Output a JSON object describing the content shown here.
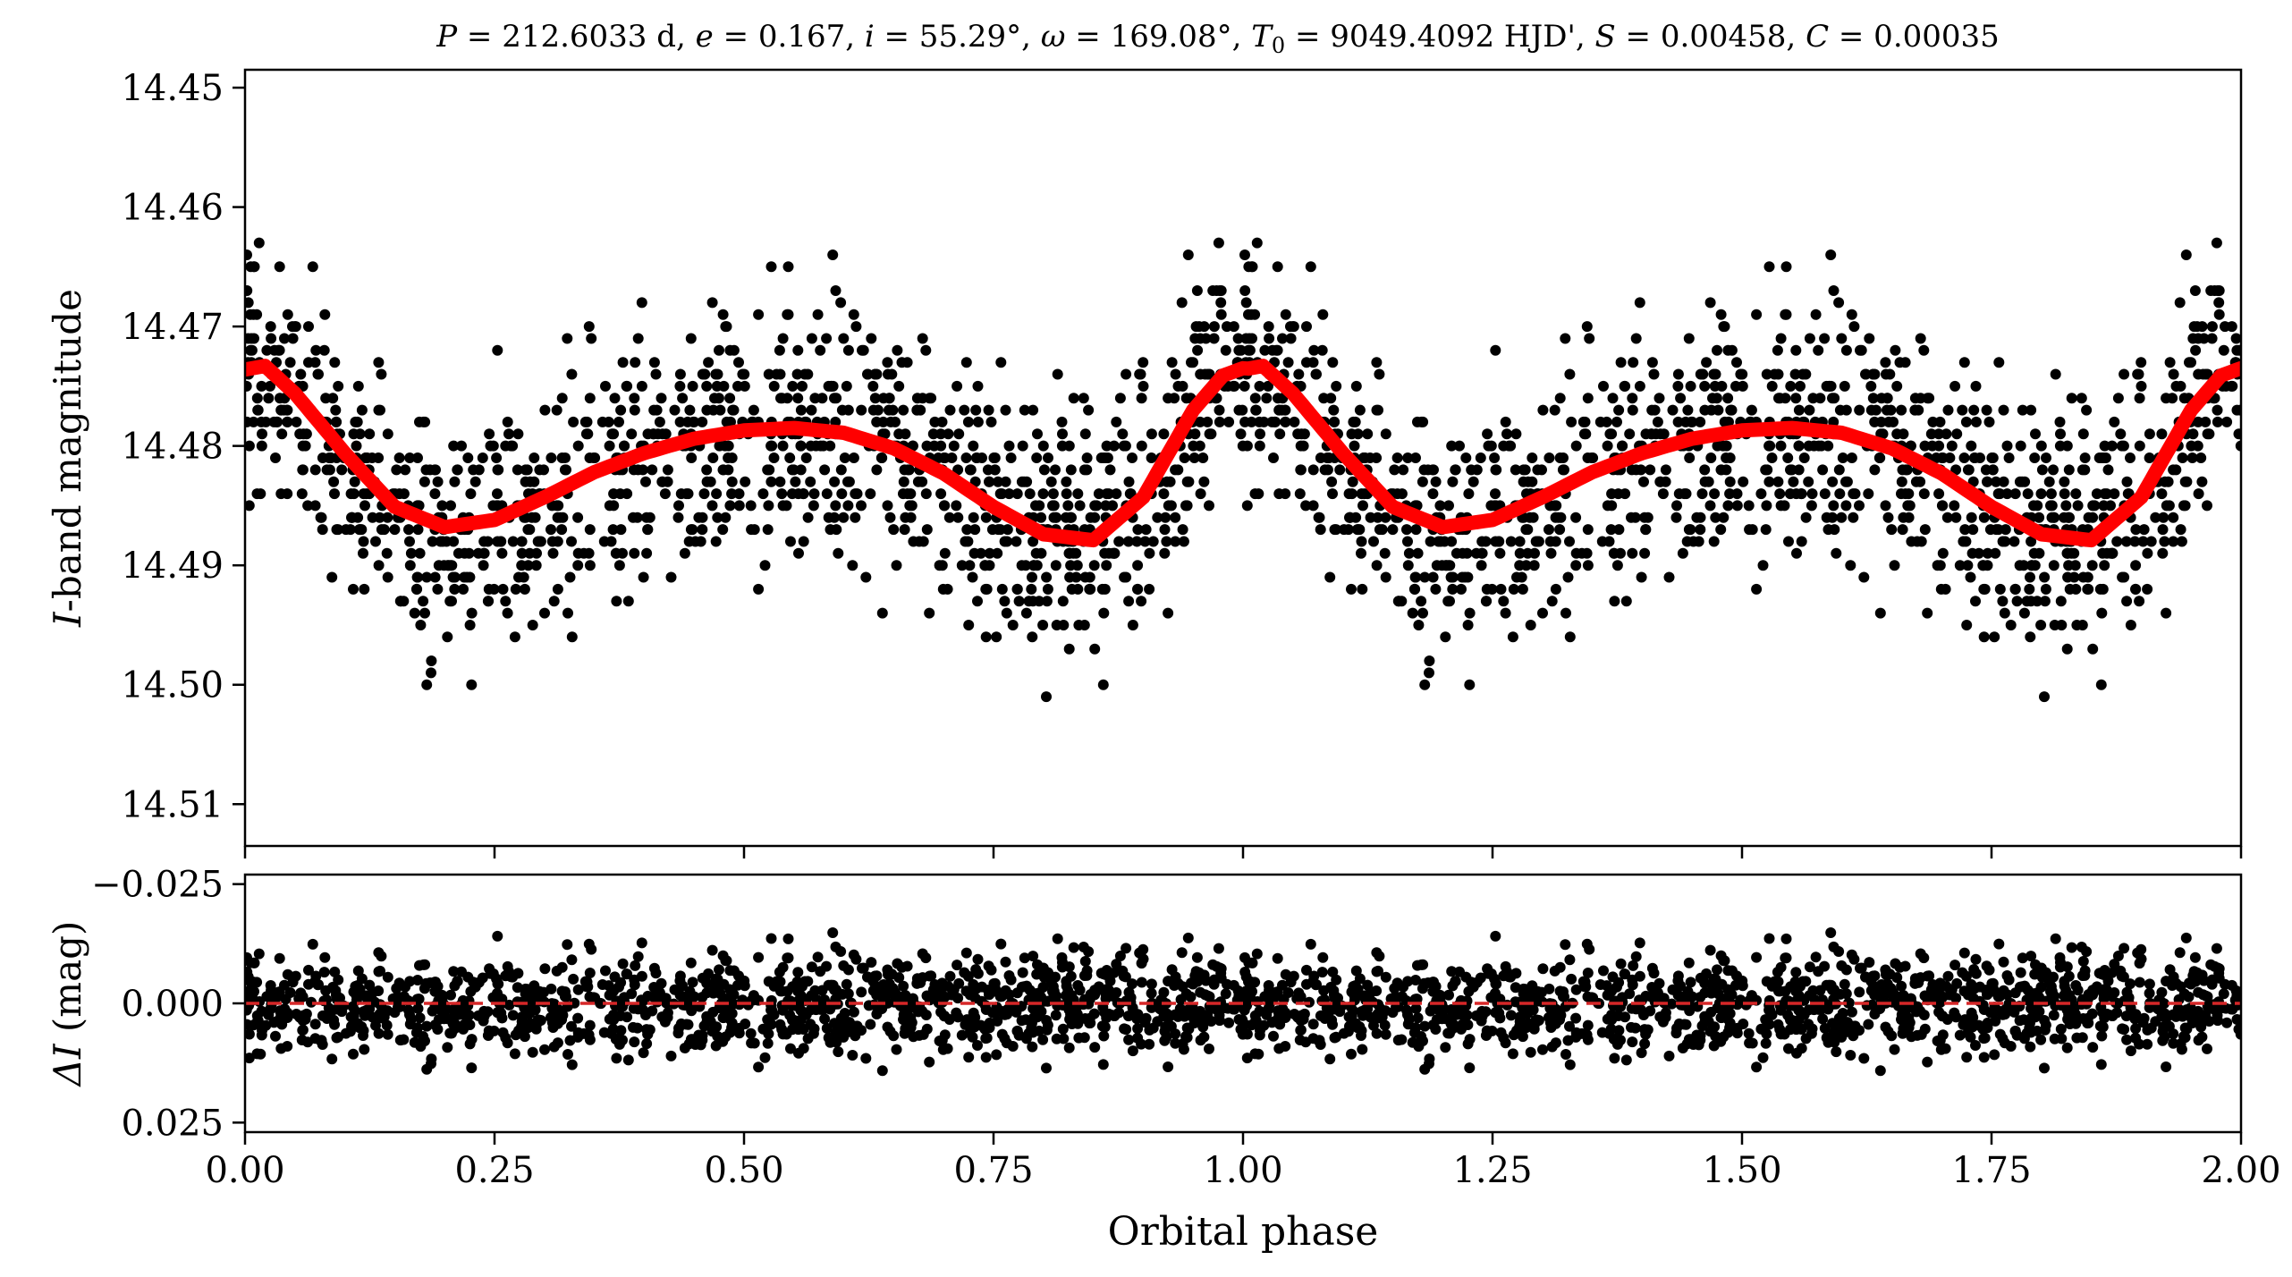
{
  "chart_data": [
    {
      "type": "scatter",
      "title": "P = 212.6033 d, e = 0.167, i = 55.29°, ω = 169.08°, T0 = 9049.4092 HJD', S = 0.00458, C = 0.00035",
      "title_parts": {
        "P_sym": "P",
        "P_val": " = 212.6033 d, ",
        "e_sym": "e",
        "e_val": " = 0.167, ",
        "i_sym": "i",
        "i_val": " = 55.29°, ",
        "w_sym": "ω",
        "w_val": " = 169.08°, ",
        "T_sym": "T",
        "T_sub": "0",
        "T_val": " = 9049.4092 HJD', ",
        "S_sym": "S",
        "S_val": " = 0.00458, ",
        "C_sym": "C",
        "C_val": " = 0.00035"
      },
      "ylabel_italic": "I",
      "ylabel_rest": "-band magnitude",
      "xlim": [
        0,
        2
      ],
      "ylim": [
        14.4485,
        14.5135
      ],
      "y_inverted": true,
      "yticks": [
        14.45,
        14.46,
        14.47,
        14.48,
        14.49,
        14.5,
        14.51
      ],
      "ytick_labels": [
        "14.45",
        "14.46",
        "14.47",
        "14.48",
        "14.49",
        "14.50",
        "14.51"
      ],
      "grid": false,
      "series": [
        {
          "kind": "points",
          "color": "#000000",
          "note_x": [
            0.0,
            0.02,
            0.05,
            0.1,
            0.15,
            0.2,
            0.25,
            0.3,
            0.35,
            0.4,
            0.45,
            0.5,
            0.55,
            0.6,
            0.65,
            0.7,
            0.75,
            0.8,
            0.85,
            0.9,
            0.95,
            0.98,
            1.0,
            1.02,
            1.05,
            1.1,
            1.15,
            1.2,
            1.25,
            1.3,
            1.35,
            1.4,
            1.45,
            1.5,
            1.55,
            1.6,
            1.65,
            1.7,
            1.75,
            1.8,
            1.85,
            1.9,
            1.95,
            1.98,
            2.0
          ],
          "note_y": [
            14.4736,
            14.4733,
            14.4756,
            14.4806,
            14.4851,
            14.4868,
            14.4862,
            14.4843,
            14.4822,
            14.4806,
            14.4794,
            14.4787,
            14.4785,
            14.4789,
            14.4802,
            14.4823,
            14.4851,
            14.4874,
            14.4879,
            14.4843,
            14.477,
            14.4741,
            14.4735,
            14.4733,
            14.4756,
            14.4806,
            14.4851,
            14.4868,
            14.4862,
            14.4843,
            14.4822,
            14.4806,
            14.4794,
            14.4787,
            14.4785,
            14.4789,
            14.4802,
            14.4823,
            14.4851,
            14.4874,
            14.4879,
            14.4843,
            14.477,
            14.4741,
            14.4735
          ],
          "scatter_sigma": 0.0052,
          "n_points_per_cycle": 1200
        },
        {
          "kind": "model-curve",
          "color": "#ff0000",
          "x": [
            0.0,
            0.02,
            0.05,
            0.1,
            0.15,
            0.2,
            0.25,
            0.3,
            0.35,
            0.4,
            0.45,
            0.5,
            0.55,
            0.6,
            0.65,
            0.7,
            0.75,
            0.8,
            0.85,
            0.9,
            0.95,
            0.98,
            1.0,
            1.02,
            1.05,
            1.1,
            1.15,
            1.2,
            1.25,
            1.3,
            1.35,
            1.4,
            1.45,
            1.5,
            1.55,
            1.6,
            1.65,
            1.7,
            1.75,
            1.8,
            1.85,
            1.9,
            1.95,
            1.98,
            2.0
          ],
          "y": [
            14.4736,
            14.4733,
            14.4756,
            14.4806,
            14.4851,
            14.4868,
            14.4862,
            14.4843,
            14.4822,
            14.4806,
            14.4794,
            14.4787,
            14.4785,
            14.4789,
            14.4802,
            14.4823,
            14.4851,
            14.4874,
            14.4879,
            14.4843,
            14.477,
            14.4741,
            14.4735,
            14.4733,
            14.4756,
            14.4806,
            14.4851,
            14.4868,
            14.4862,
            14.4843,
            14.4822,
            14.4806,
            14.4794,
            14.4787,
            14.4785,
            14.4789,
            14.4802,
            14.4823,
            14.4851,
            14.4874,
            14.4879,
            14.4843,
            14.477,
            14.4741,
            14.4735
          ]
        }
      ]
    },
    {
      "type": "scatter",
      "ylabel_sym": "ΔI",
      "ylabel_rest": " (mag)",
      "xlabel": "Orbital phase",
      "xlim": [
        0,
        2
      ],
      "ylim": [
        -0.027,
        0.027
      ],
      "y_inverted": true,
      "xticks": [
        0.0,
        0.25,
        0.5,
        0.75,
        1.0,
        1.25,
        1.5,
        1.75,
        2.0
      ],
      "xtick_labels": [
        "0.00",
        "0.25",
        "0.50",
        "0.75",
        "1.00",
        "1.25",
        "1.50",
        "1.75",
        "2.00"
      ],
      "yticks": [
        -0.025,
        0.0,
        0.025
      ],
      "ytick_labels": [
        "−0.025",
        "0.000",
        "0.025"
      ],
      "grid": false,
      "series": [
        {
          "kind": "residual-points",
          "color": "#000000",
          "scatter_sigma": 0.0052,
          "n_points_per_cycle": 1200
        },
        {
          "kind": "zero-line",
          "color": "#d62728",
          "y": 0.0,
          "style": "dashed"
        }
      ]
    }
  ]
}
